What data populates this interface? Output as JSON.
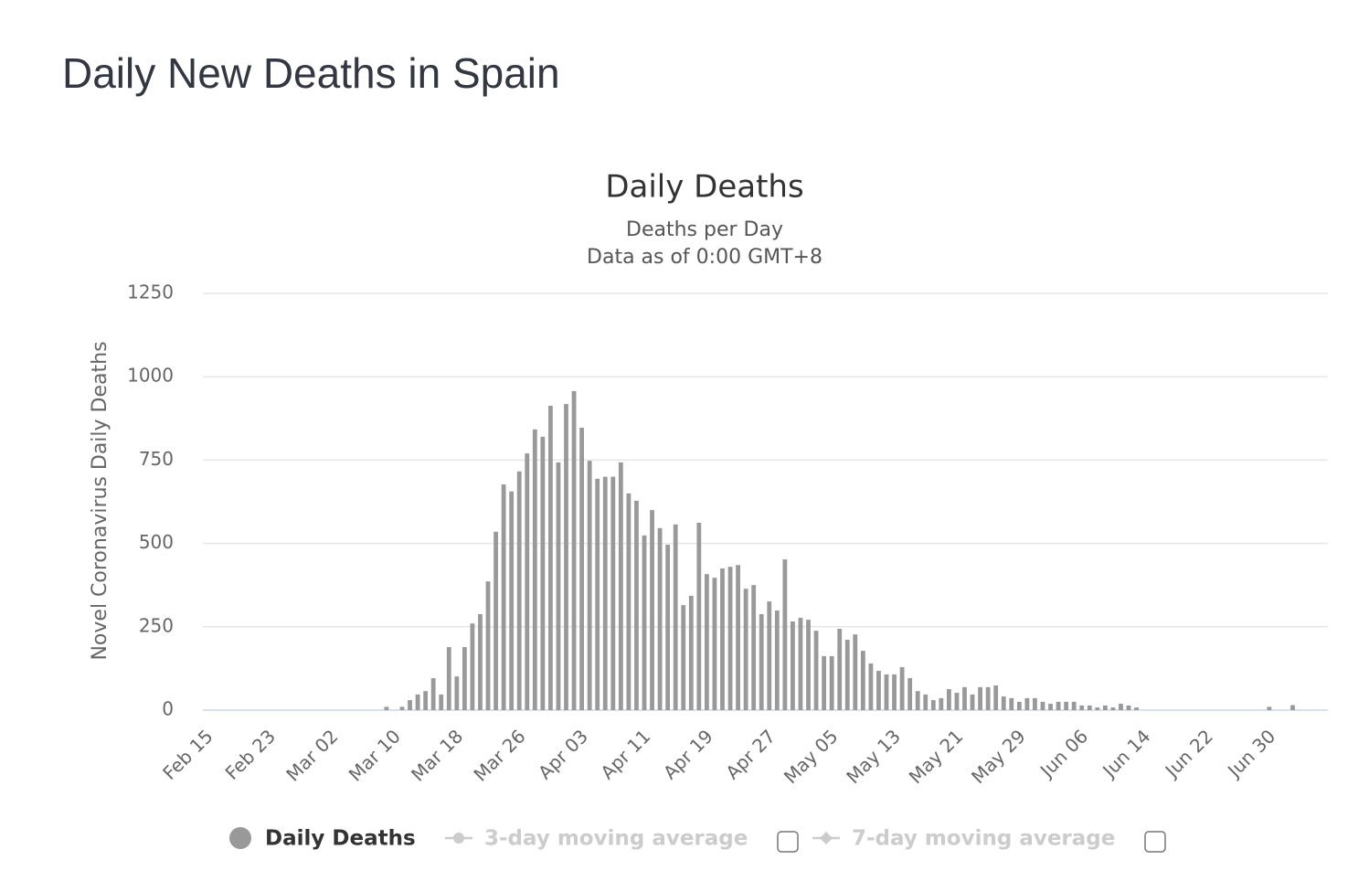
{
  "chart_data": {
    "type": "bar",
    "heading": "Daily New Deaths in Spain",
    "title": "Daily Deaths",
    "subtitle": [
      "Deaths per Day",
      "Data as of 0:00 GMT+8"
    ],
    "y_label": "Novel Coronavirus Daily Deaths",
    "categories": [
      "Feb 15",
      null,
      null,
      null,
      null,
      null,
      null,
      null,
      "Feb 23",
      null,
      null,
      null,
      null,
      null,
      null,
      null,
      "Mar 02",
      null,
      null,
      null,
      null,
      null,
      null,
      null,
      "Mar 10",
      null,
      null,
      null,
      null,
      null,
      null,
      null,
      "Mar 18",
      null,
      null,
      null,
      null,
      null,
      null,
      null,
      "Mar 26",
      null,
      null,
      null,
      null,
      null,
      null,
      null,
      "Apr 03",
      null,
      null,
      null,
      null,
      null,
      null,
      null,
      "Apr 11",
      null,
      null,
      null,
      null,
      null,
      null,
      null,
      "Apr 19",
      null,
      null,
      null,
      null,
      null,
      null,
      null,
      "Apr 27",
      null,
      null,
      null,
      null,
      null,
      null,
      null,
      "May 05",
      null,
      null,
      null,
      null,
      null,
      null,
      null,
      "May 13",
      null,
      null,
      null,
      null,
      null,
      null,
      null,
      "May 21",
      null,
      null,
      null,
      null,
      null,
      null,
      null,
      "May 29",
      null,
      null,
      null,
      null,
      null,
      null,
      null,
      "Jun 06",
      null,
      null,
      null,
      null,
      null,
      null,
      null,
      "Jun 14",
      null,
      null,
      null,
      null,
      null,
      null,
      null,
      "Jun 22",
      null,
      null,
      null,
      null,
      null,
      null,
      null,
      "Jun 30",
      null,
      null,
      null,
      null,
      null,
      null,
      null
    ],
    "series": [
      {
        "name": "Daily Deaths",
        "color": "#999999",
        "values": [
          0,
          0,
          0,
          0,
          0,
          0,
          0,
          0,
          0,
          0,
          0,
          0,
          0,
          0,
          0,
          0,
          0,
          0,
          0,
          0,
          0,
          0,
          0,
          10,
          0,
          10,
          30,
          47,
          57,
          96,
          47,
          189,
          101,
          189,
          260,
          288,
          386,
          535,
          677,
          656,
          716,
          770,
          842,
          820,
          913,
          743,
          918,
          957,
          847,
          748,
          694,
          700,
          700,
          743,
          650,
          628,
          524,
          600,
          546,
          496,
          557,
          315,
          343,
          562,
          408,
          397,
          425,
          430,
          435,
          364,
          375,
          288,
          326,
          299,
          452,
          266,
          277,
          271,
          238,
          162,
          162,
          244,
          211,
          227,
          178,
          140,
          118,
          107,
          107,
          129,
          96,
          57,
          47,
          30,
          36,
          63,
          52,
          69,
          47,
          69,
          69,
          74,
          41,
          36,
          25,
          36,
          36,
          25,
          19,
          25,
          25,
          25,
          14,
          14,
          8,
          14,
          8,
          19,
          14,
          8,
          0,
          0,
          0,
          0,
          0,
          0,
          0,
          0,
          0,
          0,
          0,
          0,
          0,
          0,
          0,
          0,
          10,
          0,
          0,
          15,
          0,
          0,
          0,
          0
        ]
      }
    ],
    "inactive_legend": [
      "3-day moving average",
      "7-day moving average"
    ],
    "ylim": [
      0,
      1250
    ],
    "yticks": [
      0,
      250,
      500,
      750,
      1000,
      1250
    ],
    "grid": true
  }
}
